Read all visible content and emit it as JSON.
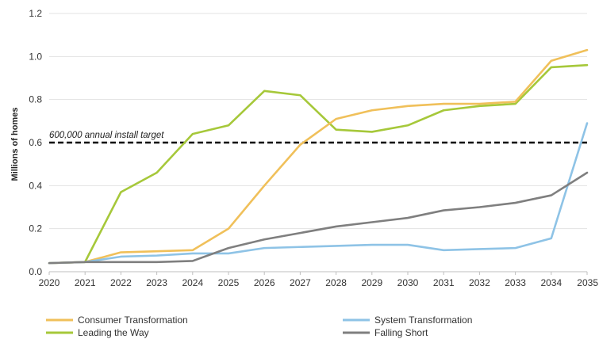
{
  "chart_data": {
    "type": "line",
    "title": "",
    "xlabel": "",
    "ylabel": "Millions of homes",
    "x": [
      "2020",
      "2021",
      "2022",
      "2023",
      "2024",
      "2025",
      "2026",
      "2027",
      "2028",
      "2029",
      "2030",
      "2031",
      "2032",
      "2033",
      "2034",
      "2035"
    ],
    "ylim": [
      0,
      1.2
    ],
    "yticks": [
      "0.0",
      "0.2",
      "0.4",
      "0.6",
      "0.8",
      "1.0",
      "1.2"
    ],
    "grid": "horizontal",
    "legend_position": "bottom",
    "series": [
      {
        "name": "Consumer Transformation",
        "color": "#F0C05A",
        "values": [
          0.04,
          0.045,
          0.09,
          0.095,
          0.1,
          0.2,
          0.4,
          0.59,
          0.71,
          0.75,
          0.77,
          0.78,
          0.78,
          0.79,
          0.98,
          1.03
        ]
      },
      {
        "name": "Leading the Way",
        "color": "#A6C83A",
        "values": [
          0.04,
          0.045,
          0.37,
          0.46,
          0.64,
          0.68,
          0.84,
          0.82,
          0.66,
          0.65,
          0.68,
          0.75,
          0.77,
          0.78,
          0.95,
          0.96
        ]
      },
      {
        "name": "System Transformation",
        "color": "#8EC3E6",
        "values": [
          0.04,
          0.045,
          0.07,
          0.075,
          0.085,
          0.085,
          0.11,
          0.115,
          0.12,
          0.125,
          0.125,
          0.1,
          0.105,
          0.11,
          0.155,
          0.69
        ]
      },
      {
        "name": "Falling Short",
        "color": "#7F7F7F",
        "values": [
          0.04,
          0.045,
          0.045,
          0.045,
          0.05,
          0.11,
          0.15,
          0.18,
          0.21,
          0.23,
          0.25,
          0.285,
          0.3,
          0.32,
          0.355,
          0.46
        ]
      }
    ],
    "annotations": [
      {
        "label": "600,000 annual install target",
        "y": 0.6,
        "style": "dashed",
        "color": "#000000"
      }
    ]
  }
}
